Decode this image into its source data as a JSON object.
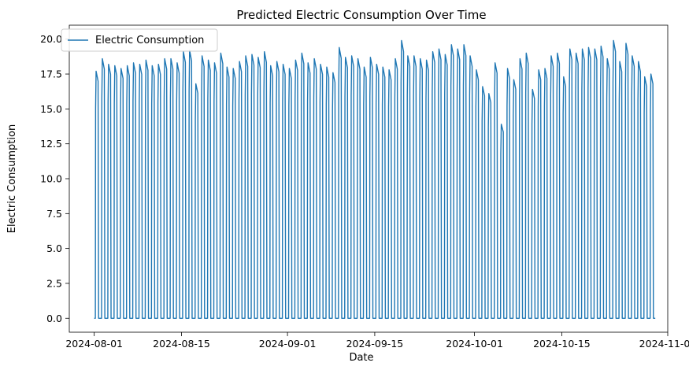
{
  "chart_data": {
    "type": "line",
    "title": "Predicted Electric Consumption Over Time",
    "xlabel": "Date",
    "ylabel": "Electric Consumption",
    "x_range": [
      "2024-08-01",
      "2024-10-29"
    ],
    "xlim": [
      "2024-07-28",
      "2024-11-01"
    ],
    "ylim": [
      -1.0,
      21.0
    ],
    "x_ticks": [
      "2024-08-01",
      "2024-08-15",
      "2024-09-01",
      "2024-09-15",
      "2024-10-01",
      "2024-10-15",
      "2024-11-01"
    ],
    "y_ticks": [
      0.0,
      2.5,
      5.0,
      7.5,
      10.0,
      12.5,
      15.0,
      17.5,
      20.0
    ],
    "y_tick_labels": [
      "0.0",
      "2.5",
      "5.0",
      "7.5",
      "10.0",
      "12.5",
      "15.0",
      "17.5",
      "20.0"
    ],
    "grid": false,
    "legend": {
      "position": "top-left",
      "entries": [
        "Electric Consumption"
      ]
    },
    "series": [
      {
        "name": "Electric Consumption",
        "color": "#1f77b4",
        "description": "daily cycle: near 0 at night, peaks each day",
        "daily_peaks": [
          17.7,
          18.6,
          18.2,
          18.1,
          17.9,
          18.1,
          18.3,
          18.2,
          18.5,
          18.1,
          18.2,
          18.6,
          18.6,
          18.3,
          19.1,
          19.2,
          16.8,
          18.8,
          18.5,
          18.3,
          19.0,
          18.0,
          17.9,
          18.4,
          18.8,
          18.9,
          18.7,
          19.1,
          18.1,
          18.4,
          18.2,
          17.9,
          18.5,
          19.0,
          18.3,
          18.6,
          18.2,
          18.0,
          17.6,
          19.4,
          18.7,
          18.8,
          18.6,
          18.0,
          18.7,
          18.2,
          18.0,
          17.8,
          18.6,
          19.9,
          18.8,
          18.8,
          18.6,
          18.5,
          19.1,
          19.3,
          18.9,
          19.6,
          19.3,
          19.6,
          18.8,
          17.8,
          16.6,
          16.1,
          18.3,
          13.9,
          17.9,
          17.1,
          18.6,
          19.0,
          16.4,
          17.8,
          17.9,
          18.8,
          19.0,
          17.3,
          19.3,
          19.0,
          19.3,
          19.4,
          19.3,
          19.5,
          18.6,
          19.9,
          18.4,
          19.7,
          18.8,
          18.4,
          17.3,
          17.5
        ]
      }
    ]
  }
}
